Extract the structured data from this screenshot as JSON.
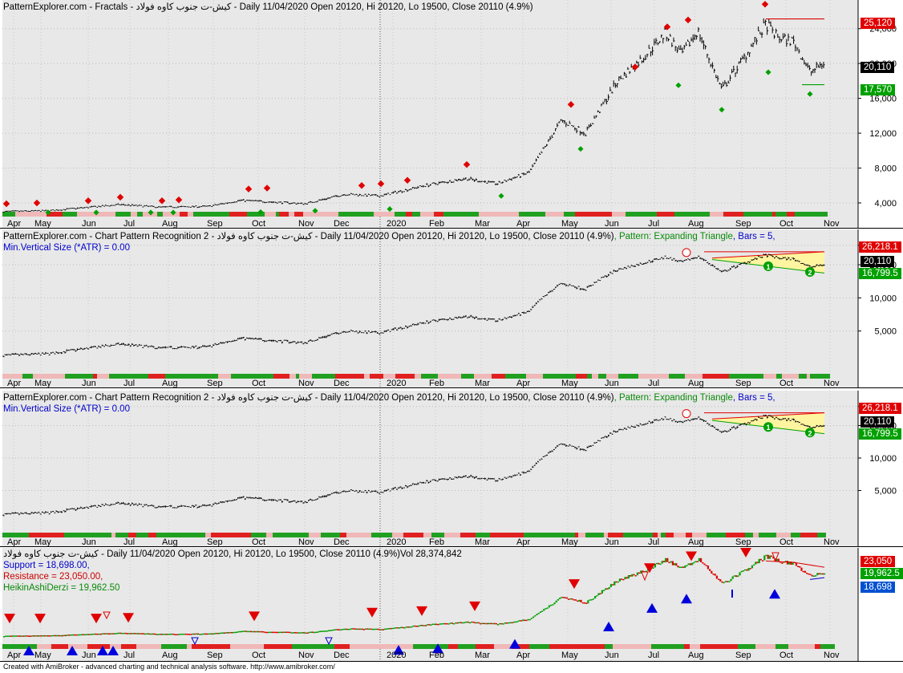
{
  "pane1": {
    "header": "PatternExplorer.com - Fractals - کیش-ت جنوب کاوه فولاد - Daily 11/04/2020 Open 20120, Hi 20120, Lo 19500, Close 20110 (4.9%)",
    "y_ticks": [
      "24,000",
      "20,000",
      "16,000",
      "12,000",
      "8,000",
      "4,000"
    ],
    "tags": {
      "high": "25,120",
      "close": "20,110",
      "low": "17,570"
    }
  },
  "pane2": {
    "header_a": "PatternExplorer.com - Chart Pattern Recognition 2 - کیش-ت جنوب کاوه فولاد - Daily 11/04/2020 Open 20120, Hi 20120, Lo 19500, Close 20110 (4.9%)",
    "header_b": ", Pattern: Expanding Triangle",
    "header_c": ", Bars = 5,",
    "header_line2": "Min.Vertical Size (*ATR) = 0.00",
    "y_ticks": [
      "30,000",
      "20,000",
      "10,000",
      "5,000"
    ],
    "tags": {
      "high": "26,218.1",
      "close": "20,110",
      "low": "16,799.5"
    },
    "point_labels": [
      "1",
      "2"
    ]
  },
  "pane3": {
    "header_a": "PatternExplorer.com - Chart Pattern Recognition 2 - کیش-ت جنوب کاوه فولاد - Daily 11/04/2020 Open 20120, Hi 20120, Lo 19500, Close 20110 (4.9%)",
    "header_b": ", Pattern: Expanding Triangle",
    "header_c": ", Bars = 5,",
    "header_line2": "Min.Vertical Size (*ATR) = 0.00",
    "y_ticks": [
      "30,000",
      "20,000",
      "10,000",
      "5,000"
    ],
    "tags": {
      "high": "26,218.1",
      "close": "20,110",
      "low": "16,799.5"
    },
    "point_labels": [
      "1",
      "2"
    ]
  },
  "pane4": {
    "header": "کیش-ت جنوب کاوه فولاد - Daily 11/04/2020 Open 20120, Hi 20120, Lo 19500, Close 20110 (4.9%)Vol 28,374,842",
    "support": "Support = 18,698.00,",
    "resistance": "Resistance = 23,050.00,",
    "heikin": "HeikinAshiDerzi = 19,962.50",
    "tags": {
      "resistance": "23,050",
      "heikin": "19,962.5",
      "support": "18,698"
    }
  },
  "x_labels": [
    "Apr",
    "May",
    "Jun",
    "Jul",
    "Aug",
    "Sep",
    "Oct",
    "Nov",
    "Dec",
    "2020",
    "Feb",
    "Mar",
    "Apr",
    "May",
    "Jun",
    "Jul",
    "Aug",
    "Sep",
    "Oct",
    "Nov"
  ],
  "footer": "Created with AmiBroker - advanced charting and technical analysis software. http://www.amibroker.com/",
  "colors": {
    "up": "#00a000",
    "down": "#e00000",
    "neutral_band": "#f0c0c0",
    "background": "#e8e8e8",
    "pattern_fill": "#fff4a0"
  }
}
